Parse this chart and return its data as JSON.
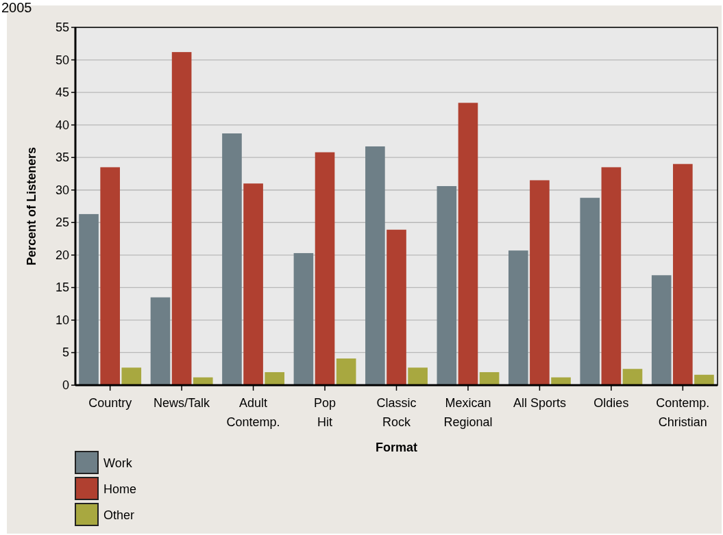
{
  "chart_data": {
    "type": "bar",
    "title": "2005",
    "xlabel": "Format",
    "ylabel": "Percent of Listeners",
    "categories": [
      "Country",
      "News/Talk",
      "Adult\nContemp.",
      "Pop\nHit",
      "Classic\nRock",
      "Mexican\nRegional",
      "All Sports",
      "Oldies",
      "Contemp.\nChristian"
    ],
    "series": [
      {
        "name": "Work",
        "color": "#6e7f87",
        "values": [
          26.3,
          13.5,
          38.7,
          20.3,
          36.7,
          30.6,
          20.7,
          28.8,
          16.9
        ]
      },
      {
        "name": "Home",
        "color": "#b04030",
        "values": [
          33.5,
          51.2,
          31.0,
          35.8,
          23.9,
          43.4,
          31.5,
          33.5,
          34.0
        ]
      },
      {
        "name": "Other",
        "color": "#a8a840",
        "values": [
          2.7,
          1.2,
          2.0,
          4.1,
          2.7,
          2.0,
          1.2,
          2.5,
          1.6
        ]
      }
    ],
    "ylim": [
      0,
      55
    ],
    "yticks": [
      0,
      5,
      10,
      15,
      20,
      25,
      30,
      35,
      40,
      45,
      50,
      55
    ],
    "grid": "y",
    "legend": "bottom left"
  }
}
